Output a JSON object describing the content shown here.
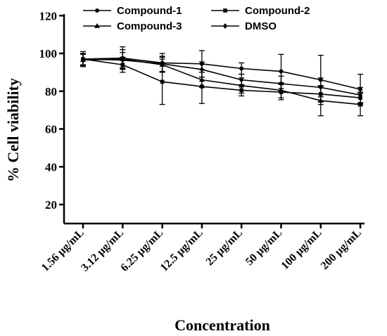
{
  "chart_data": {
    "type": "line",
    "xlabel": "Concentration",
    "ylabel": "% Cell viability",
    "ylim": [
      10,
      120
    ],
    "yticks": [
      20,
      40,
      60,
      80,
      100,
      120
    ],
    "categories": [
      "1.56 µg/mL",
      "3.12 µg/mL",
      "6.25 µg/mL",
      "12.5 µg/mL",
      "25 µg/mL",
      "50 µg/mL",
      "100 µg/mL",
      "200 µg/mL"
    ],
    "legend_position": "top",
    "grid": false,
    "series": [
      {
        "name": "Compound-1",
        "marker": "circle",
        "values": [
          97,
          97.5,
          95,
          94.5,
          92,
          90.5,
          86,
          81
        ],
        "errors": [
          3,
          6,
          5,
          7,
          3,
          9,
          13,
          8
        ]
      },
      {
        "name": "Compound-2",
        "marker": "square",
        "values": [
          97,
          94,
          85,
          82.5,
          80.5,
          79.5,
          78.5,
          76.5
        ],
        "errors": [
          4,
          4,
          12,
          9,
          3,
          4,
          4,
          3
        ]
      },
      {
        "name": "Compound-3",
        "marker": "triangle",
        "values": [
          96.5,
          97,
          94,
          86,
          83,
          80.5,
          75,
          73
        ],
        "errors": [
          3,
          5,
          4,
          4,
          4,
          4,
          8,
          6
        ]
      },
      {
        "name": "DMSO",
        "marker": "diamond",
        "values": [
          97,
          96.5,
          94.5,
          91.5,
          86,
          84,
          82,
          78
        ],
        "errors": [
          3,
          4,
          4,
          4,
          3,
          4,
          5,
          4
        ]
      }
    ]
  }
}
